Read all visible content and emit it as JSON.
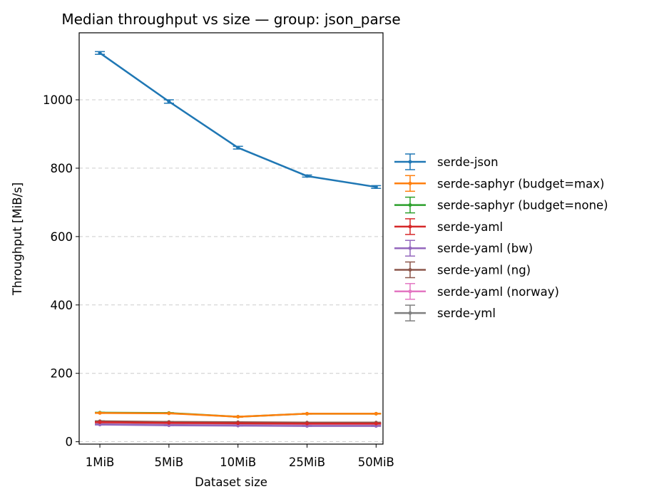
{
  "chart_data": {
    "type": "line",
    "title": "Median throughput vs size — group: json_parse",
    "xlabel": "Dataset size",
    "ylabel": "Throughput [MiB/s]",
    "categories": [
      "1MiB",
      "5MiB",
      "10MiB",
      "25MiB",
      "50MiB"
    ],
    "ylim": [
      -7,
      1196
    ],
    "yticks": [
      0,
      200,
      400,
      600,
      800,
      1000
    ],
    "grid": "y-dashed",
    "legend_position": "outside-right",
    "error_bars": true,
    "series": [
      {
        "name": "serde-json",
        "color": "#1f77b4",
        "values": [
          1137,
          995,
          860,
          777,
          745
        ],
        "errors": [
          4,
          5,
          4,
          3,
          4
        ]
      },
      {
        "name": "serde-saphyr (budget=max)",
        "color": "#ff7f0e",
        "values": [
          84,
          83,
          73,
          82,
          82
        ],
        "errors": [
          1,
          1,
          1,
          1,
          1
        ]
      },
      {
        "name": "serde-saphyr (budget=none)",
        "color": "#2ca02c",
        "values": [
          85,
          84,
          73,
          82,
          82
        ],
        "errors": [
          1,
          1,
          1,
          1,
          1
        ]
      },
      {
        "name": "serde-yaml",
        "color": "#d62728",
        "values": [
          57,
          55,
          54,
          53,
          53
        ],
        "errors": [
          1,
          1,
          1,
          1,
          1
        ]
      },
      {
        "name": "serde-yaml (bw)",
        "color": "#9467bd",
        "values": [
          50,
          48,
          47,
          46,
          46
        ],
        "errors": [
          1,
          1,
          1,
          1,
          1
        ]
      },
      {
        "name": "serde-yaml (ng)",
        "color": "#8c564b",
        "values": [
          60,
          58,
          57,
          56,
          56
        ],
        "errors": [
          1,
          1,
          1,
          1,
          1
        ]
      },
      {
        "name": "serde-yaml (norway)",
        "color": "#e377c2",
        "values": [
          56,
          54,
          53,
          52,
          52
        ],
        "errors": [
          1,
          1,
          1,
          1,
          1
        ]
      },
      {
        "name": "serde-yml",
        "color": "#7f7f7f",
        "values": [
          55,
          53,
          52,
          51,
          51
        ],
        "errors": [
          1,
          1,
          1,
          1,
          1
        ]
      }
    ]
  }
}
